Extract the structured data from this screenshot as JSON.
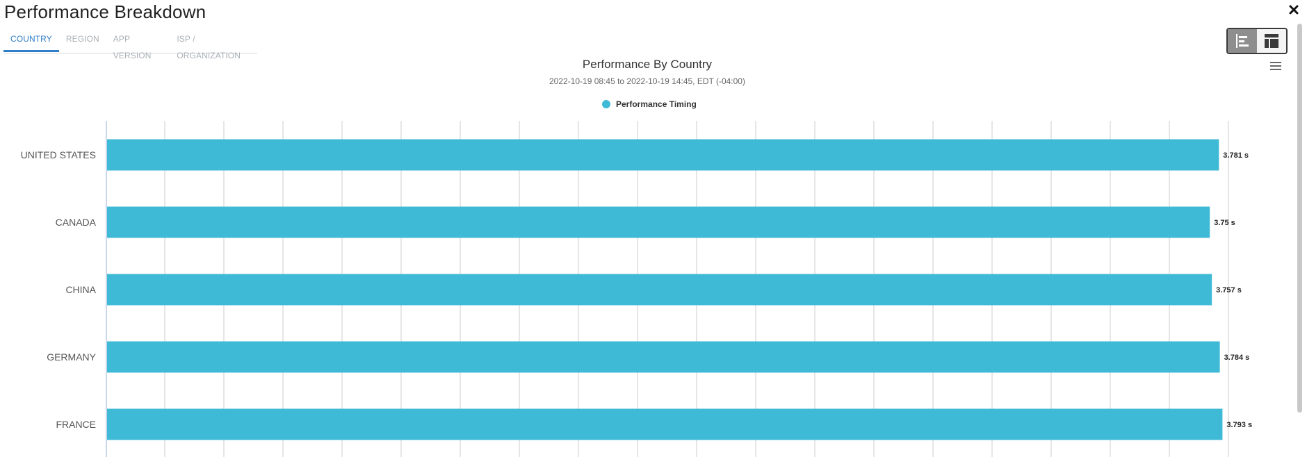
{
  "header": {
    "title": "Performance Breakdown",
    "close_label": "×"
  },
  "tabs": [
    {
      "label": "COUNTRY",
      "active": true
    },
    {
      "label": "REGION",
      "active": false
    },
    {
      "label": "APP VERSION",
      "active": false
    },
    {
      "label": "ISP / ORGANIZATION",
      "active": false
    }
  ],
  "view_toggle": {
    "options": [
      {
        "icon": "bar-chart-icon",
        "selected": true
      },
      {
        "icon": "table-layout-icon",
        "selected": false
      }
    ]
  },
  "chart_menu_icon": "hamburger-menu-icon",
  "chart_data": {
    "type": "bar",
    "orientation": "horizontal",
    "title": "Performance By Country",
    "subtitle": "2022-10-19 08:45 to 2022-10-19 14:45, EDT (-04:00)",
    "categories": [
      "UNITED STATES",
      "CANADA",
      "CHINA",
      "GERMANY",
      "FRANCE"
    ],
    "series": [
      {
        "name": "Performance Timing",
        "color": "#3fbad6",
        "values": [
          3.781,
          3.75,
          3.757,
          3.784,
          3.793
        ],
        "data_labels": [
          "3.781 s",
          "3.75 s",
          "3.757 s",
          "3.784 s",
          "3.793 s"
        ]
      }
    ],
    "value_unit": "s",
    "xlim": [
      0,
      4.0
    ],
    "gridlines": true,
    "legend_position": "top-center"
  }
}
